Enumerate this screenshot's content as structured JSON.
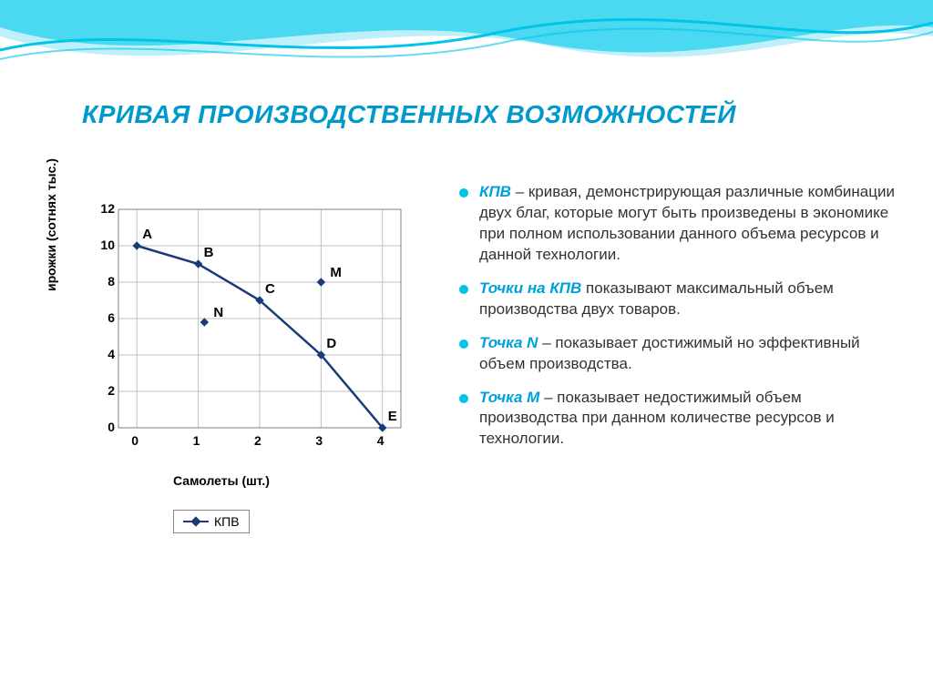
{
  "title": "КРИВАЯ ПРОИЗВОДСТВЕННЫХ ВОЗМОЖНОСТЕЙ",
  "title_color": "#0099cc",
  "title_fontsize": 28,
  "wave_colors": [
    "#00c4e8",
    "#4ad9f0",
    "#bff0fa"
  ],
  "chart": {
    "type": "line",
    "x_label": "Самолеты (шт.)",
    "y_label": "ирожки (сотнях тыс.)",
    "xlim": [
      -0.3,
      4.3
    ],
    "ylim": [
      0,
      12
    ],
    "xtick_step": 1,
    "ytick_step": 2,
    "x_ticks": [
      0,
      1,
      2,
      3,
      4
    ],
    "y_ticks": [
      0,
      2,
      4,
      6,
      8,
      10,
      12
    ],
    "grid_color": "#c0c0c0",
    "background_color": "#ffffff",
    "plot_border_color": "#808080",
    "label_fontsize": 14,
    "legend_label": "КПВ",
    "series": {
      "name": "КПВ",
      "color": "#1b3a7a",
      "line_width": 2.5,
      "marker": "diamond",
      "marker_size": 8,
      "x": [
        0,
        1,
        2,
        3,
        4
      ],
      "y": [
        10,
        9,
        7,
        4,
        0
      ],
      "point_labels": [
        "A",
        "B",
        "C",
        "D",
        "E"
      ]
    },
    "extra_points": [
      {
        "label": "N",
        "x": 1.1,
        "y": 5.8,
        "color": "#1b3a7a",
        "marker": "diamond"
      },
      {
        "label": "M",
        "x": 3.0,
        "y": 8.0,
        "color": "#1b3a7a",
        "marker": "diamond"
      }
    ]
  },
  "bullets": [
    {
      "lead": "КПВ",
      "text": " – кривая, демонстрирующая различные комбинации двух благ, которые могут быть произведены в экономике при полном использовании данного объема ресурсов и данной технологии."
    },
    {
      "lead": "Точки на КПВ",
      "text": " показывают максимальный объем производства двух товаров."
    },
    {
      "lead": "Точка N",
      "text": " – показывает достижимый но эффективный объем производства."
    },
    {
      "lead": "Точка M",
      "text": " – показывает недостижимый объем производства при данном количестве ресурсов и технологии."
    }
  ],
  "bullet_marker_color": "#00c4e8",
  "bullet_lead_color": "#00a0dd",
  "bullet_fontsize": 17
}
